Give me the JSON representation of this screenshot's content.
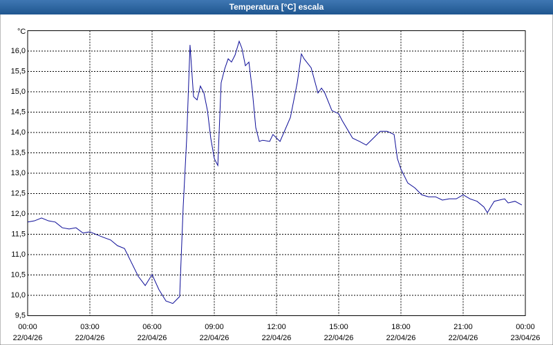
{
  "chart_data": {
    "type": "line",
    "title": "Temperatura [°C] escala",
    "y_unit": "°C",
    "x": [
      0,
      0.33,
      0.67,
      1.0,
      1.33,
      1.67,
      2.0,
      2.33,
      2.67,
      3.0,
      3.33,
      3.67,
      4.0,
      4.33,
      4.67,
      5.0,
      5.33,
      5.67,
      6.0,
      6.33,
      6.67,
      7.0,
      7.33,
      7.5,
      7.67,
      7.83,
      8.0,
      8.17,
      8.33,
      8.5,
      8.67,
      8.83,
      9.0,
      9.17,
      9.33,
      9.5,
      9.67,
      9.83,
      10.0,
      10.2,
      10.33,
      10.5,
      10.67,
      10.83,
      11.0,
      11.17,
      11.33,
      11.67,
      11.83,
      12.17,
      12.67,
      13.0,
      13.2,
      13.33,
      13.67,
      14.0,
      14.17,
      14.33,
      14.67,
      15.0,
      15.17,
      15.67,
      16.0,
      16.33,
      16.67,
      17.0,
      17.33,
      17.67,
      17.83,
      18.0,
      18.33,
      18.67,
      19.0,
      19.33,
      19.67,
      20.0,
      20.33,
      20.67,
      21.0,
      21.33,
      21.67,
      22.0,
      22.17,
      22.33,
      22.5,
      23.0,
      23.17,
      23.5,
      23.83
    ],
    "series": [
      {
        "name": "Temperatura",
        "color": "#0a0a96",
        "values": [
          11.8,
          11.83,
          11.9,
          11.83,
          11.8,
          11.66,
          11.63,
          11.66,
          11.53,
          11.56,
          11.49,
          11.42,
          11.36,
          11.22,
          11.15,
          10.81,
          10.47,
          10.24,
          10.51,
          10.14,
          9.86,
          9.8,
          9.97,
          12.17,
          13.86,
          16.15,
          14.88,
          14.8,
          15.14,
          14.97,
          14.54,
          13.86,
          13.36,
          13.19,
          15.22,
          15.56,
          15.81,
          15.73,
          15.9,
          16.24,
          16.07,
          15.64,
          15.73,
          15.05,
          14.12,
          13.78,
          13.81,
          13.78,
          13.95,
          13.78,
          14.37,
          15.22,
          15.93,
          15.81,
          15.59,
          14.97,
          15.09,
          14.97,
          14.54,
          14.46,
          14.29,
          13.86,
          13.78,
          13.69,
          13.86,
          14.03,
          14.03,
          13.95,
          13.36,
          13.1,
          12.76,
          12.64,
          12.47,
          12.42,
          12.42,
          12.34,
          12.37,
          12.37,
          12.47,
          12.37,
          12.31,
          12.17,
          12.03,
          12.17,
          12.31,
          12.37,
          12.27,
          12.31,
          12.22
        ]
      }
    ],
    "xlim": [
      0,
      24
    ],
    "xticks": [
      {
        "value": 0,
        "label": "00:00"
      },
      {
        "value": 3,
        "label": "03:00"
      },
      {
        "value": 6,
        "label": "06:00"
      },
      {
        "value": 9,
        "label": "09:00"
      },
      {
        "value": 12,
        "label": "12:00"
      },
      {
        "value": 15,
        "label": "15:00"
      },
      {
        "value": 18,
        "label": "18:00"
      },
      {
        "value": 21,
        "label": "21:00"
      },
      {
        "value": 24,
        "label": "00:00"
      }
    ],
    "xtick_dates": [
      "22/04/26",
      "22/04/26",
      "22/04/26",
      "22/04/26",
      "22/04/26",
      "22/04/26",
      "22/04/26",
      "22/04/26",
      "23/04/26"
    ],
    "ylim": [
      9.5,
      16.5
    ],
    "yticks": [
      {
        "value": 9.5,
        "label": "9,5"
      },
      {
        "value": 10,
        "label": "10,0"
      },
      {
        "value": 10.5,
        "label": "10,5"
      },
      {
        "value": 11,
        "label": "11,0"
      },
      {
        "value": 11.5,
        "label": "11,5"
      },
      {
        "value": 12,
        "label": "12,0"
      },
      {
        "value": 12.5,
        "label": "12,5"
      },
      {
        "value": 13,
        "label": "13,0"
      },
      {
        "value": 13.5,
        "label": "13,5"
      },
      {
        "value": 14,
        "label": "14,0"
      },
      {
        "value": 14.5,
        "label": "14,5"
      },
      {
        "value": 15,
        "label": "15,0"
      },
      {
        "value": 15.5,
        "label": "15,5"
      },
      {
        "value": 16,
        "label": "16,0"
      }
    ],
    "grid": true
  }
}
